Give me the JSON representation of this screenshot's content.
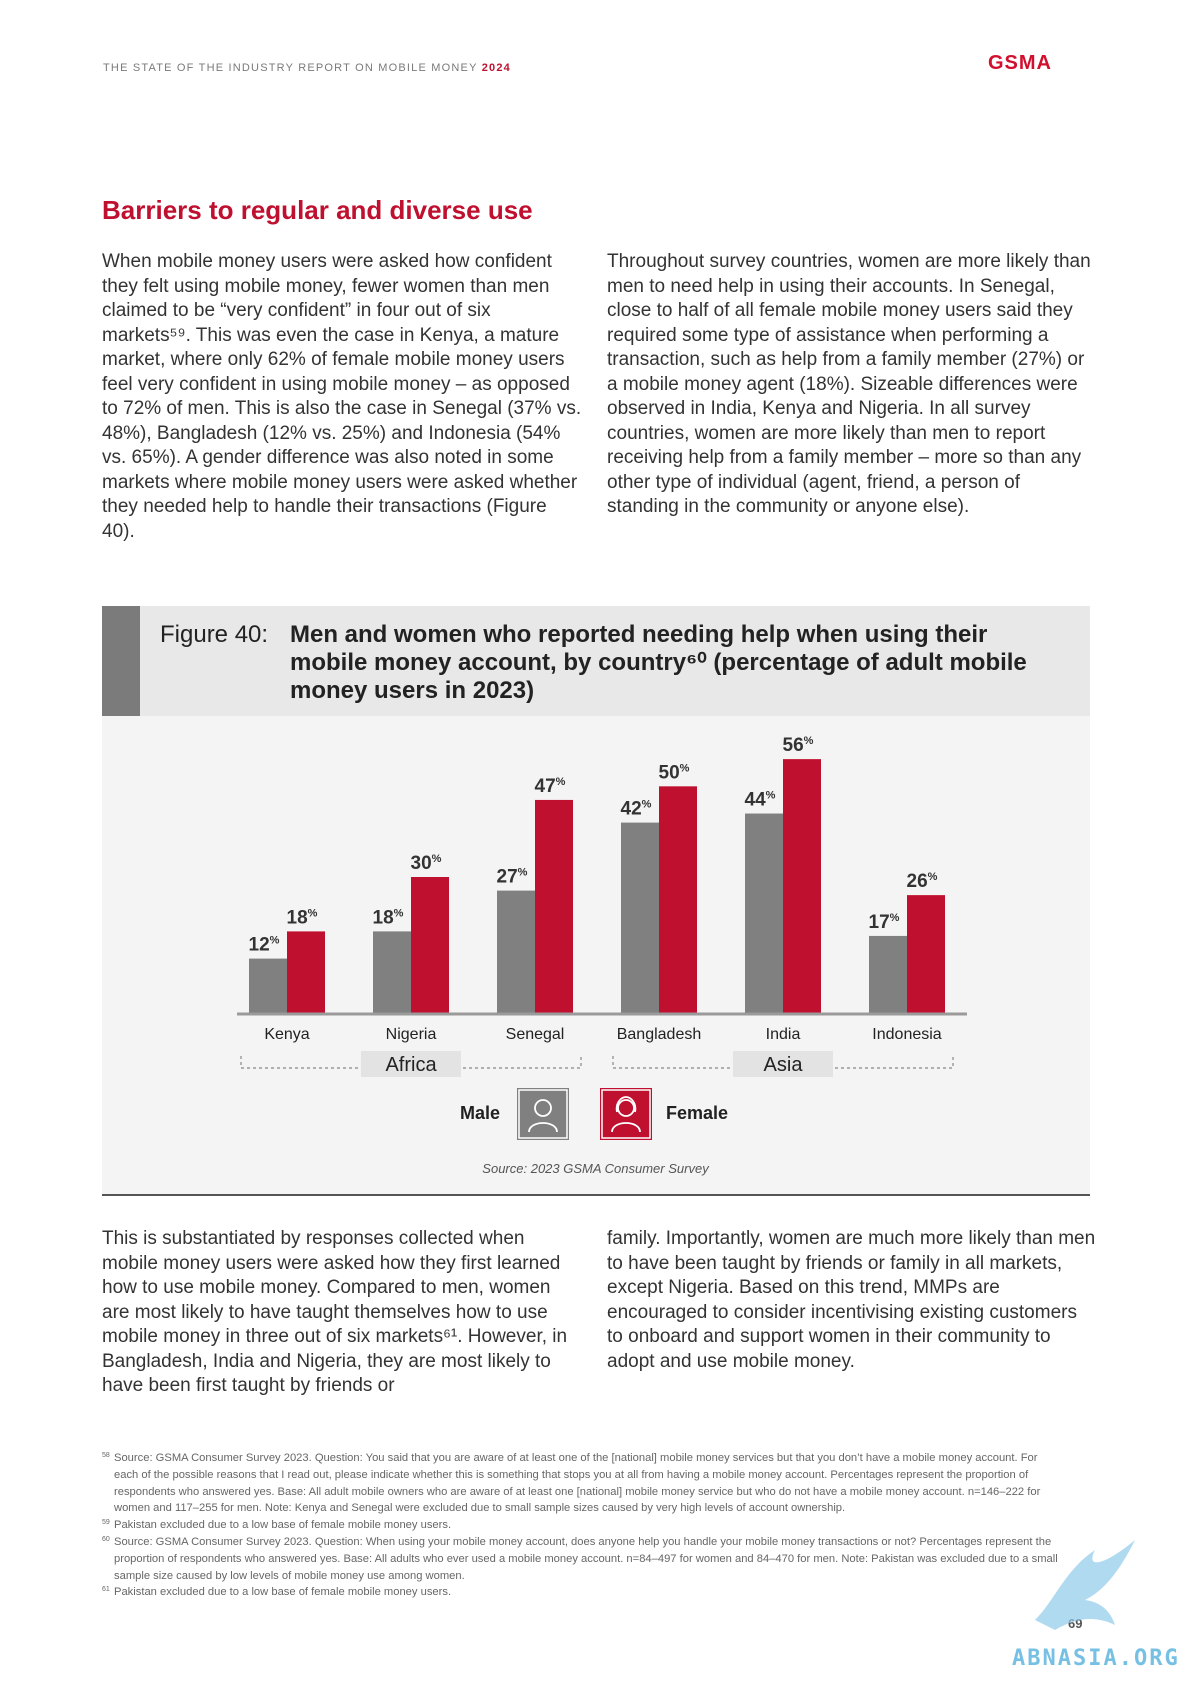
{
  "header": {
    "report_title": "THE STATE OF THE INDUSTRY REPORT ON MOBILE MONEY",
    "year": "2024",
    "logo": "GSMA"
  },
  "section_title": "Barriers to regular and diverse use",
  "body_top_left": "When mobile money users were asked how confident they felt using mobile money, fewer women than men claimed to be “very confident” in four out of six markets⁵⁹. This was even the case in Kenya, a mature market, where only 62% of female mobile money users feel very confident in using mobile money – as opposed to 72% of men. This is also the case in Senegal (37% vs. 48%), Bangladesh (12% vs. 25%) and Indonesia (54% vs. 65%). A gender difference was also noted in some markets where mobile money users were asked whether they needed help to handle their transactions (Figure 40).",
  "body_top_right": "Throughout survey countries, women are more likely than men to need help in using their accounts. In Senegal, close to half of all female mobile money users said they required some type of assistance when performing a transaction, such as help from a family member (27%) or a mobile money agent (18%). Sizeable differences were observed in India, Kenya and Nigeria. In all survey countries, women are more likely than men to report receiving help from a family member – more so than any other type of individual (agent, friend, a person of standing in the community or anyone else).",
  "figure": {
    "label": "Figure 40:",
    "title": "Men and women who reported needing help when using their mobile money account, by country⁶⁰ (percentage of adult mobile money users in 2023)",
    "source": "Source: 2023 GSMA Consumer Survey",
    "legend_male": "Male",
    "legend_female": "Female",
    "percent_sign": "%"
  },
  "chart_data": {
    "type": "bar",
    "categories": [
      "Kenya",
      "Nigeria",
      "Senegal",
      "Bangladesh",
      "India",
      "Indonesia"
    ],
    "series": [
      {
        "name": "Male",
        "values": [
          12,
          18,
          27,
          42,
          44,
          17
        ],
        "color": "#808080"
      },
      {
        "name": "Female",
        "values": [
          18,
          30,
          47,
          50,
          56,
          26
        ],
        "color": "#c0102f"
      }
    ],
    "groups": [
      {
        "name": "Africa",
        "categories": [
          "Kenya",
          "Nigeria",
          "Senegal"
        ]
      },
      {
        "name": "Asia",
        "categories": [
          "Bangladesh",
          "India",
          "Indonesia"
        ]
      }
    ],
    "ylim": [
      0,
      60
    ],
    "grid": false,
    "legend": "bottom-center"
  },
  "body_bottom_left": "This is substantiated by responses collected when mobile money users were asked how they first learned how to use mobile money. Compared to men, women are most likely to have taught themselves how to use mobile money in three out of six markets⁶¹. However, in Bangladesh, India and Nigeria, they are most likely to have been first taught by friends or",
  "body_bottom_right": "family. Importantly, women are much more likely than men to have been taught by friends or family in all markets, except Nigeria. Based on this trend, MMPs are encouraged to consider incentivising existing customers to onboard and support women in their community to adopt and use mobile money.",
  "footnotes": [
    {
      "num": "58",
      "text": "Source: GSMA Consumer Survey 2023. Question: You said that you are aware of at least one of the [national] mobile money services but that you don’t have a mobile money account. For each of the possible reasons that I read out, please indicate whether this is something that stops you at all from having a mobile money account. Percentages represent the proportion of respondents who answered yes. Base: All adult mobile owners who are aware of at least one [national] mobile money service but who do not have a mobile money account. n=146–222 for women and 117–255 for men. Note: Kenya and Senegal were excluded due to small sample sizes caused by very high levels of account ownership."
    },
    {
      "num": "59",
      "text": "Pakistan excluded due to a low base of female mobile money users."
    },
    {
      "num": "60",
      "text": "Source: GSMA Consumer Survey 2023. Question: When using your mobile money account, does anyone help you handle your mobile money transactions or not? Percentages represent the proportion of respondents who answered yes. Base: All adults who ever used a mobile money account. n=84–497 for women and 84–470 for men. Note: Pakistan was excluded due to a small sample size caused by low levels of mobile money use among women."
    },
    {
      "num": "61",
      "text": "Pakistan excluded due to a low base of female mobile money users."
    }
  ],
  "page_number": "69",
  "watermark": "ABNASIA.ORG"
}
